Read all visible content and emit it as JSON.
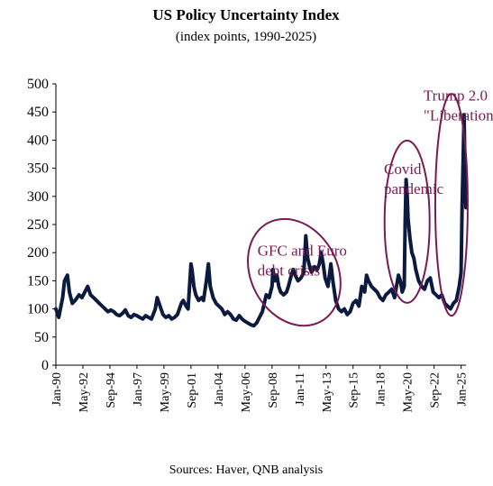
{
  "chart_data": {
    "type": "line",
    "title": "US Policy Uncertainty Index",
    "subtitle": "(index points, 1990-2025)",
    "xlabel": "",
    "ylabel": "",
    "source": "Sources: Haver, QNB analysis",
    "ylim": [
      0,
      500
    ],
    "yticks": [
      0,
      50,
      100,
      150,
      200,
      250,
      300,
      350,
      400,
      450,
      500
    ],
    "xlim": [
      "1990-01",
      "2025-06"
    ],
    "xticks": [
      "Jan-90",
      "May-92",
      "Sep-94",
      "Jan-97",
      "May-99",
      "Sep-01",
      "Jan-04",
      "May-06",
      "Sep-08",
      "Jan-11",
      "May-13",
      "Sep-15",
      "Jan-18",
      "May-20",
      "Sep-22",
      "Jan-25"
    ],
    "grid": false,
    "line_color": "#0d1a3f",
    "annotation_color": "#7a1a52",
    "annotations": [
      {
        "lines": [
          "GFC and Euro",
          "debt crisis"
        ],
        "x": "2007-06",
        "y": 195
      },
      {
        "lines": [
          "Covid",
          "pandemic"
        ],
        "x": "2018-05",
        "y": 340
      },
      {
        "lines": [
          "Trump 2.0",
          "\"Liberation day\""
        ],
        "x": "2021-10",
        "y": 470
      }
    ],
    "highlights": [
      {
        "x": "2010-08",
        "y": 165
      },
      {
        "x": "2020-05",
        "y": 255
      },
      {
        "x": "2024-03",
        "y": 285
      }
    ],
    "series": [
      {
        "values": [
          [
            "1990-01",
            100
          ],
          [
            "1990-04",
            85
          ],
          [
            "1990-08",
            120
          ],
          [
            "1990-10",
            150
          ],
          [
            "1991-01",
            160
          ],
          [
            "1991-03",
            130
          ],
          [
            "1991-06",
            110
          ],
          [
            "1991-09",
            115
          ],
          [
            "1992-01",
            125
          ],
          [
            "1992-04",
            120
          ],
          [
            "1992-07",
            130
          ],
          [
            "1992-10",
            140
          ],
          [
            "1993-01",
            125
          ],
          [
            "1993-04",
            120
          ],
          [
            "1993-07",
            115
          ],
          [
            "1993-10",
            110
          ],
          [
            "1994-01",
            105
          ],
          [
            "1994-04",
            100
          ],
          [
            "1994-07",
            95
          ],
          [
            "1994-10",
            98
          ],
          [
            "1995-01",
            95
          ],
          [
            "1995-04",
            90
          ],
          [
            "1995-07",
            88
          ],
          [
            "1995-10",
            92
          ],
          [
            "1996-01",
            98
          ],
          [
            "1996-04",
            88
          ],
          [
            "1996-07",
            85
          ],
          [
            "1996-10",
            90
          ],
          [
            "1997-01",
            88
          ],
          [
            "1997-04",
            85
          ],
          [
            "1997-07",
            82
          ],
          [
            "1997-10",
            88
          ],
          [
            "1998-01",
            85
          ],
          [
            "1998-04",
            82
          ],
          [
            "1998-08",
            100
          ],
          [
            "1998-10",
            120
          ],
          [
            "1999-01",
            105
          ],
          [
            "1999-04",
            90
          ],
          [
            "1999-07",
            85
          ],
          [
            "1999-10",
            88
          ],
          [
            "2000-01",
            82
          ],
          [
            "2000-04",
            85
          ],
          [
            "2000-07",
            90
          ],
          [
            "2000-11",
            110
          ],
          [
            "2001-01",
            115
          ],
          [
            "2001-04",
            105
          ],
          [
            "2001-06",
            100
          ],
          [
            "2001-09",
            180
          ],
          [
            "2001-10",
            170
          ],
          [
            "2001-12",
            140
          ],
          [
            "2002-02",
            125
          ],
          [
            "2002-05",
            115
          ],
          [
            "2002-08",
            120
          ],
          [
            "2002-10",
            115
          ],
          [
            "2003-01",
            150
          ],
          [
            "2003-03",
            180
          ],
          [
            "2003-05",
            140
          ],
          [
            "2003-08",
            120
          ],
          [
            "2003-11",
            110
          ],
          [
            "2004-02",
            105
          ],
          [
            "2004-05",
            100
          ],
          [
            "2004-08",
            90
          ],
          [
            "2004-11",
            95
          ],
          [
            "2005-02",
            90
          ],
          [
            "2005-05",
            82
          ],
          [
            "2005-08",
            80
          ],
          [
            "2005-11",
            88
          ],
          [
            "2006-02",
            82
          ],
          [
            "2006-05",
            78
          ],
          [
            "2006-08",
            75
          ],
          [
            "2006-11",
            72
          ],
          [
            "2007-02",
            70
          ],
          [
            "2007-05",
            75
          ],
          [
            "2007-08",
            85
          ],
          [
            "2007-11",
            95
          ],
          [
            "2008-01",
            110
          ],
          [
            "2008-03",
            125
          ],
          [
            "2008-06",
            120
          ],
          [
            "2008-09",
            140
          ],
          [
            "2008-10",
            170
          ],
          [
            "2008-12",
            150
          ],
          [
            "2009-02",
            160
          ],
          [
            "2009-04",
            140
          ],
          [
            "2009-06",
            130
          ],
          [
            "2009-09",
            125
          ],
          [
            "2009-12",
            130
          ],
          [
            "2010-02",
            140
          ],
          [
            "2010-05",
            160
          ],
          [
            "2010-07",
            170
          ],
          [
            "2010-09",
            160
          ],
          [
            "2010-12",
            150
          ],
          [
            "2011-03",
            155
          ],
          [
            "2011-06",
            165
          ],
          [
            "2011-08",
            230
          ],
          [
            "2011-10",
            190
          ],
          [
            "2011-12",
            175
          ],
          [
            "2012-02",
            165
          ],
          [
            "2012-05",
            175
          ],
          [
            "2012-08",
            170
          ],
          [
            "2012-10",
            180
          ],
          [
            "2012-12",
            200
          ],
          [
            "2013-02",
            180
          ],
          [
            "2013-04",
            155
          ],
          [
            "2013-07",
            140
          ],
          [
            "2013-10",
            180
          ],
          [
            "2013-12",
            150
          ],
          [
            "2014-03",
            115
          ],
          [
            "2014-06",
            100
          ],
          [
            "2014-09",
            95
          ],
          [
            "2014-12",
            100
          ],
          [
            "2015-03",
            90
          ],
          [
            "2015-06",
            95
          ],
          [
            "2015-09",
            110
          ],
          [
            "2015-12",
            115
          ],
          [
            "2016-03",
            105
          ],
          [
            "2016-06",
            140
          ],
          [
            "2016-09",
            130
          ],
          [
            "2016-11",
            160
          ],
          [
            "2017-01",
            150
          ],
          [
            "2017-04",
            140
          ],
          [
            "2017-07",
            135
          ],
          [
            "2017-10",
            130
          ],
          [
            "2018-01",
            120
          ],
          [
            "2018-04",
            115
          ],
          [
            "2018-07",
            125
          ],
          [
            "2018-10",
            130
          ],
          [
            "2019-01",
            135
          ],
          [
            "2019-04",
            120
          ],
          [
            "2019-06",
            140
          ],
          [
            "2019-08",
            160
          ],
          [
            "2019-10",
            150
          ],
          [
            "2019-12",
            130
          ],
          [
            "2020-02",
            140
          ],
          [
            "2020-03",
            260
          ],
          [
            "2020-04",
            330
          ],
          [
            "2020-05",
            305
          ],
          [
            "2020-06",
            260
          ],
          [
            "2020-08",
            225
          ],
          [
            "2020-10",
            200
          ],
          [
            "2020-12",
            190
          ],
          [
            "2021-02",
            170
          ],
          [
            "2021-05",
            150
          ],
          [
            "2021-08",
            140
          ],
          [
            "2021-11",
            135
          ],
          [
            "2022-02",
            150
          ],
          [
            "2022-05",
            155
          ],
          [
            "2022-08",
            130
          ],
          [
            "2022-11",
            125
          ],
          [
            "2023-02",
            120
          ],
          [
            "2023-05",
            125
          ],
          [
            "2023-08",
            110
          ],
          [
            "2023-11",
            105
          ],
          [
            "2024-02",
            100
          ],
          [
            "2024-05",
            110
          ],
          [
            "2024-08",
            115
          ],
          [
            "2024-11",
            140
          ],
          [
            "2025-01",
            165
          ],
          [
            "2025-02",
            280
          ],
          [
            "2025-03",
            360
          ],
          [
            "2025-04",
            445
          ],
          [
            "2025-05",
            350
          ],
          [
            "2025-06",
            280
          ]
        ]
      }
    ]
  }
}
